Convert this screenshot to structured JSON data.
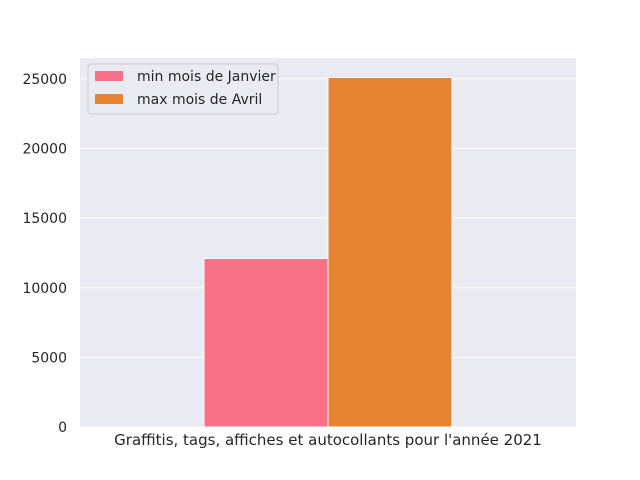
{
  "chart_data": {
    "type": "bar",
    "xlabel": "Graffitis, tags, affiches et autocollants pour l'année 2021",
    "ylabel": "",
    "title": "",
    "ylim": [
      0,
      26500
    ],
    "yticks": [
      0,
      5000,
      10000,
      15000,
      20000,
      25000
    ],
    "grid": true,
    "legend_position": "top-left",
    "background_color": "#eaeaf2",
    "grid_color": "#ffffff",
    "series": [
      {
        "name": "min mois de Janvier",
        "value": 12100,
        "color": "#f77189"
      },
      {
        "name": "max mois de Avril",
        "value": 25100,
        "color": "#e68433"
      }
    ]
  }
}
